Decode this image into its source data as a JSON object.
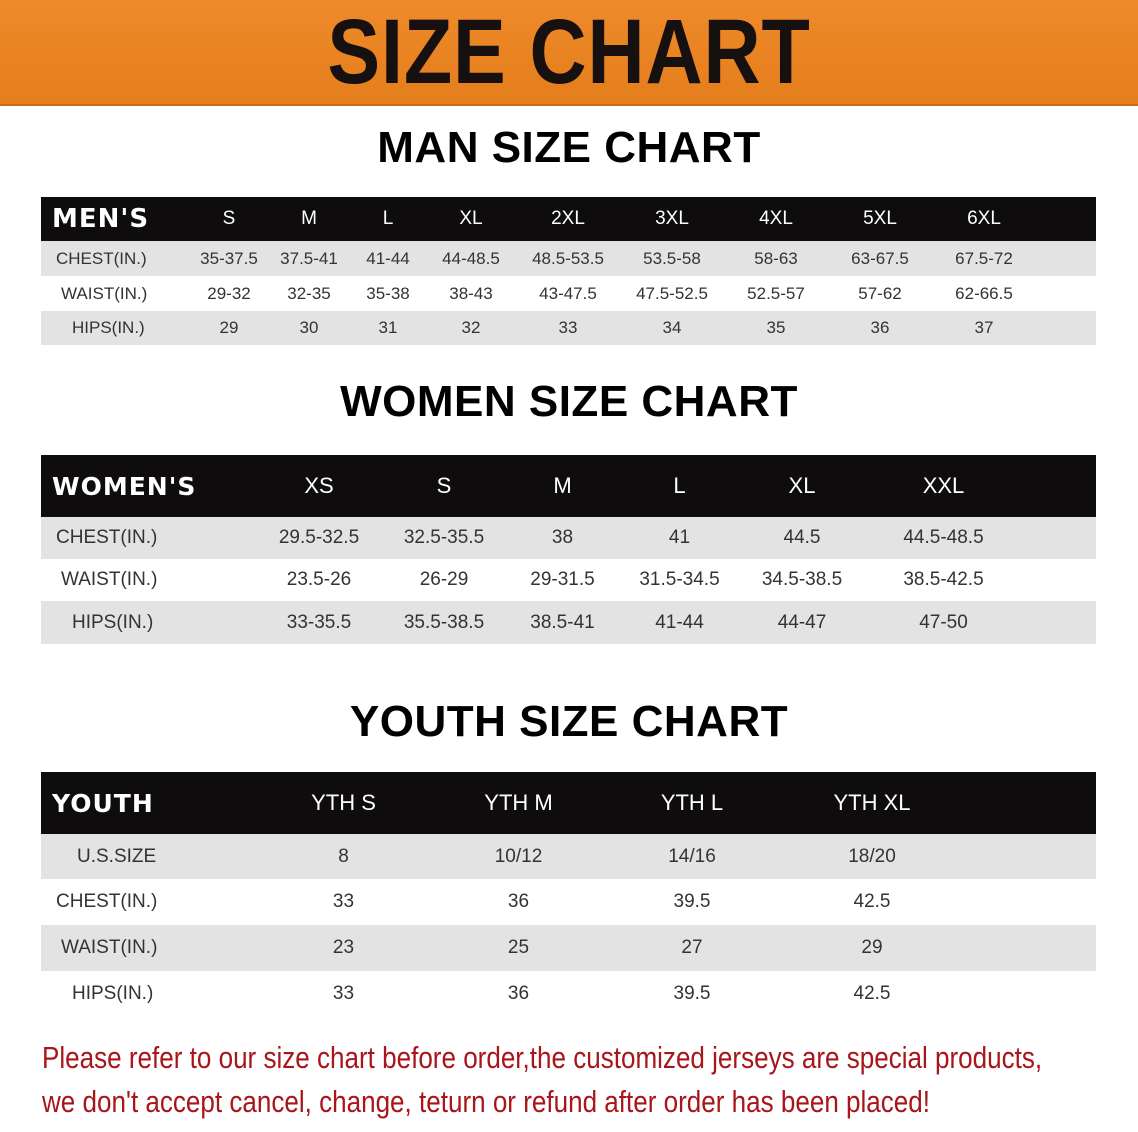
{
  "banner": {
    "title": "SIZE CHART",
    "color": "#e98420"
  },
  "men": {
    "title": "MAN SIZE CHART",
    "header": [
      "MEN'S",
      "S",
      "M",
      "L",
      "XL",
      "2XL",
      "3XL",
      "4XL",
      "5XL",
      "6XL"
    ],
    "rows": [
      [
        "CHEST(IN.)",
        "35-37.5",
        "37.5-41",
        "41-44",
        "44-48.5",
        "48.5-53.5",
        "53.5-58",
        "58-63",
        "63-67.5",
        "67.5-72"
      ],
      [
        "WAIST(IN.)",
        "29-32",
        "32-35",
        "35-38",
        "38-43",
        "43-47.5",
        "47.5-52.5",
        "52.5-57",
        "57-62",
        "62-66.5"
      ],
      [
        "HIPS(IN.)",
        "29",
        "30",
        "31",
        "32",
        "33",
        "34",
        "35",
        "36",
        "37"
      ]
    ]
  },
  "women": {
    "title": "WOMEN SIZE CHART",
    "header": [
      "WOMEN'S",
      "XS",
      "S",
      "M",
      "L",
      "XL",
      "XXL"
    ],
    "rows": [
      [
        "CHEST(IN.)",
        "29.5-32.5",
        "32.5-35.5",
        "38",
        "41",
        "44.5",
        "44.5-48.5"
      ],
      [
        "WAIST(IN.)",
        "23.5-26",
        "26-29",
        "29-31.5",
        "31.5-34.5",
        "34.5-38.5",
        "38.5-42.5"
      ],
      [
        "HIPS(IN.)",
        "33-35.5",
        "35.5-38.5",
        "38.5-41",
        "41-44",
        "44-47",
        "47-50"
      ]
    ]
  },
  "youth": {
    "title": "YOUTH SIZE CHART",
    "header": [
      "YOUTH",
      "YTH S",
      "YTH M",
      "YTH L",
      "YTH XL"
    ],
    "rows": [
      [
        "U.S.SIZE",
        "8",
        "10/12",
        "14/16",
        "18/20"
      ],
      [
        "CHEST(IN.)",
        "33",
        "36",
        "39.5",
        "42.5"
      ],
      [
        "WAIST(IN.)",
        "23",
        "25",
        "27",
        "29"
      ],
      [
        "HIPS(IN.)",
        "33",
        "36",
        "39.5",
        "42.5"
      ]
    ]
  },
  "note": {
    "line1": "Please refer to our size chart before order,the customized jerseys are special products,",
    "line2": "we don't accept cancel, change, teturn or refund after order has been placed!",
    "color": "#a8161b"
  }
}
